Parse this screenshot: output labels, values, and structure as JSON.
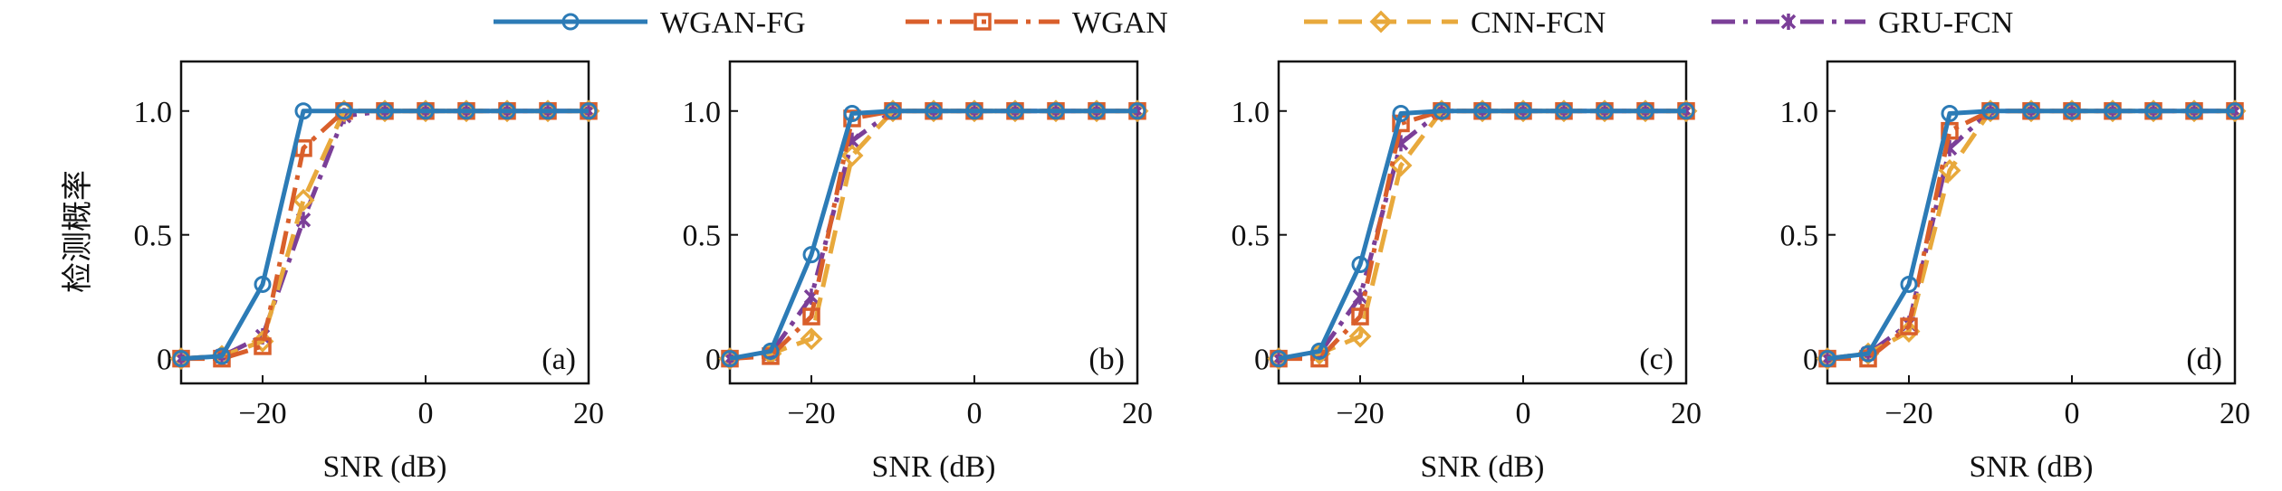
{
  "legend": [
    {
      "name": "WGAN-FG",
      "color": "#2c7bb6",
      "marker": "circle",
      "dash": "solid"
    },
    {
      "name": "WGAN",
      "color": "#d95f2b",
      "marker": "square",
      "dash": "dashdot"
    },
    {
      "name": "CNN-FCN",
      "color": "#e8a93c",
      "marker": "diamond",
      "dash": "dashed"
    },
    {
      "name": "GRU-FCN",
      "color": "#7b3f98",
      "marker": "star",
      "dash": "dashdot"
    }
  ],
  "chart_data": [
    {
      "type": "line",
      "panel_label": "(a)",
      "xlabel": "SNR (dB)",
      "ylabel": "检测概率",
      "xlim": [
        -30,
        20
      ],
      "ylim": [
        -0.1,
        1.2
      ],
      "xticks": [
        -20,
        0,
        20
      ],
      "xtick_labels": [
        "−20",
        "0",
        "20"
      ],
      "yticks": [
        0,
        0.5,
        1.0
      ],
      "ytick_labels": [
        "0",
        "0.5",
        "1.0"
      ],
      "x": [
        -30,
        -25,
        -20,
        -15,
        -10,
        -5,
        0,
        5,
        10,
        15,
        20
      ],
      "series": [
        {
          "name": "WGAN-FG",
          "values": [
            0,
            0.01,
            0.3,
            1.0,
            1.0,
            1.0,
            1.0,
            1.0,
            1.0,
            1.0,
            1.0
          ]
        },
        {
          "name": "WGAN",
          "values": [
            0,
            0,
            0.05,
            0.85,
            1.0,
            1.0,
            1.0,
            1.0,
            1.0,
            1.0,
            1.0
          ]
        },
        {
          "name": "CNN-FCN",
          "values": [
            0,
            0.01,
            0.07,
            0.64,
            1.0,
            1.0,
            1.0,
            1.0,
            1.0,
            1.0,
            1.0
          ]
        },
        {
          "name": "GRU-FCN",
          "values": [
            0,
            0.01,
            0.09,
            0.56,
            0.98,
            1.0,
            1.0,
            1.0,
            1.0,
            1.0,
            1.0
          ]
        }
      ]
    },
    {
      "type": "line",
      "panel_label": "(b)",
      "xlabel": "SNR (dB)",
      "ylabel": "",
      "xlim": [
        -30,
        20
      ],
      "ylim": [
        -0.1,
        1.2
      ],
      "xticks": [
        -20,
        0,
        20
      ],
      "xtick_labels": [
        "−20",
        "0",
        "20"
      ],
      "yticks": [
        0,
        0.5,
        1.0
      ],
      "ytick_labels": [
        "0",
        "0.5",
        "1.0"
      ],
      "x": [
        -30,
        -25,
        -20,
        -15,
        -10,
        -5,
        0,
        5,
        10,
        15,
        20
      ],
      "series": [
        {
          "name": "WGAN-FG",
          "values": [
            0,
            0.03,
            0.42,
            0.99,
            1.0,
            1.0,
            1.0,
            1.0,
            1.0,
            1.0,
            1.0
          ]
        },
        {
          "name": "WGAN",
          "values": [
            0,
            0.01,
            0.17,
            0.97,
            1.0,
            1.0,
            1.0,
            1.0,
            1.0,
            1.0,
            1.0
          ]
        },
        {
          "name": "CNN-FCN",
          "values": [
            0,
            0.02,
            0.08,
            0.82,
            1.0,
            1.0,
            1.0,
            1.0,
            1.0,
            1.0,
            1.0
          ]
        },
        {
          "name": "GRU-FCN",
          "values": [
            0,
            0.02,
            0.25,
            0.88,
            1.0,
            1.0,
            1.0,
            1.0,
            1.0,
            1.0,
            1.0
          ]
        }
      ]
    },
    {
      "type": "line",
      "panel_label": "(c)",
      "xlabel": "SNR (dB)",
      "ylabel": "",
      "xlim": [
        -30,
        20
      ],
      "ylim": [
        -0.1,
        1.2
      ],
      "xticks": [
        -20,
        0,
        20
      ],
      "xtick_labels": [
        "−20",
        "0",
        "20"
      ],
      "yticks": [
        0,
        0.5,
        1.0
      ],
      "ytick_labels": [
        "0",
        "0.5",
        "1.0"
      ],
      "x": [
        -30,
        -25,
        -20,
        -15,
        -10,
        -5,
        0,
        5,
        10,
        15,
        20
      ],
      "series": [
        {
          "name": "WGAN-FG",
          "values": [
            0,
            0.03,
            0.38,
            0.99,
            1.0,
            1.0,
            1.0,
            1.0,
            1.0,
            1.0,
            1.0
          ]
        },
        {
          "name": "WGAN",
          "values": [
            0,
            0.0,
            0.17,
            0.95,
            1.0,
            1.0,
            1.0,
            1.0,
            1.0,
            1.0,
            1.0
          ]
        },
        {
          "name": "CNN-FCN",
          "values": [
            0,
            0.02,
            0.09,
            0.78,
            1.0,
            1.0,
            1.0,
            1.0,
            1.0,
            1.0,
            1.0
          ]
        },
        {
          "name": "GRU-FCN",
          "values": [
            0,
            0.02,
            0.25,
            0.87,
            1.0,
            1.0,
            1.0,
            1.0,
            1.0,
            1.0,
            1.0
          ]
        }
      ]
    },
    {
      "type": "line",
      "panel_label": "(d)",
      "xlabel": "SNR (dB)",
      "ylabel": "",
      "xlim": [
        -30,
        20
      ],
      "ylim": [
        -0.1,
        1.2
      ],
      "xticks": [
        -20,
        0,
        20
      ],
      "xtick_labels": [
        "−20",
        "0",
        "20"
      ],
      "yticks": [
        0,
        0.5,
        1.0
      ],
      "ytick_labels": [
        "0",
        "0.5",
        "1.0"
      ],
      "x": [
        -30,
        -25,
        -20,
        -15,
        -10,
        -5,
        0,
        5,
        10,
        15,
        20
      ],
      "series": [
        {
          "name": "WGAN-FG",
          "values": [
            0,
            0.02,
            0.3,
            0.99,
            1.0,
            1.0,
            1.0,
            1.0,
            1.0,
            1.0,
            1.0
          ]
        },
        {
          "name": "WGAN",
          "values": [
            0,
            0.0,
            0.13,
            0.92,
            1.0,
            1.0,
            1.0,
            1.0,
            1.0,
            1.0,
            1.0
          ]
        },
        {
          "name": "CNN-FCN",
          "values": [
            0,
            0.02,
            0.11,
            0.76,
            1.0,
            1.0,
            1.0,
            1.0,
            1.0,
            1.0,
            1.0
          ]
        },
        {
          "name": "GRU-FCN",
          "values": [
            0,
            0.02,
            0.14,
            0.85,
            1.0,
            1.0,
            1.0,
            1.0,
            1.0,
            1.0,
            1.0
          ]
        }
      ]
    }
  ]
}
